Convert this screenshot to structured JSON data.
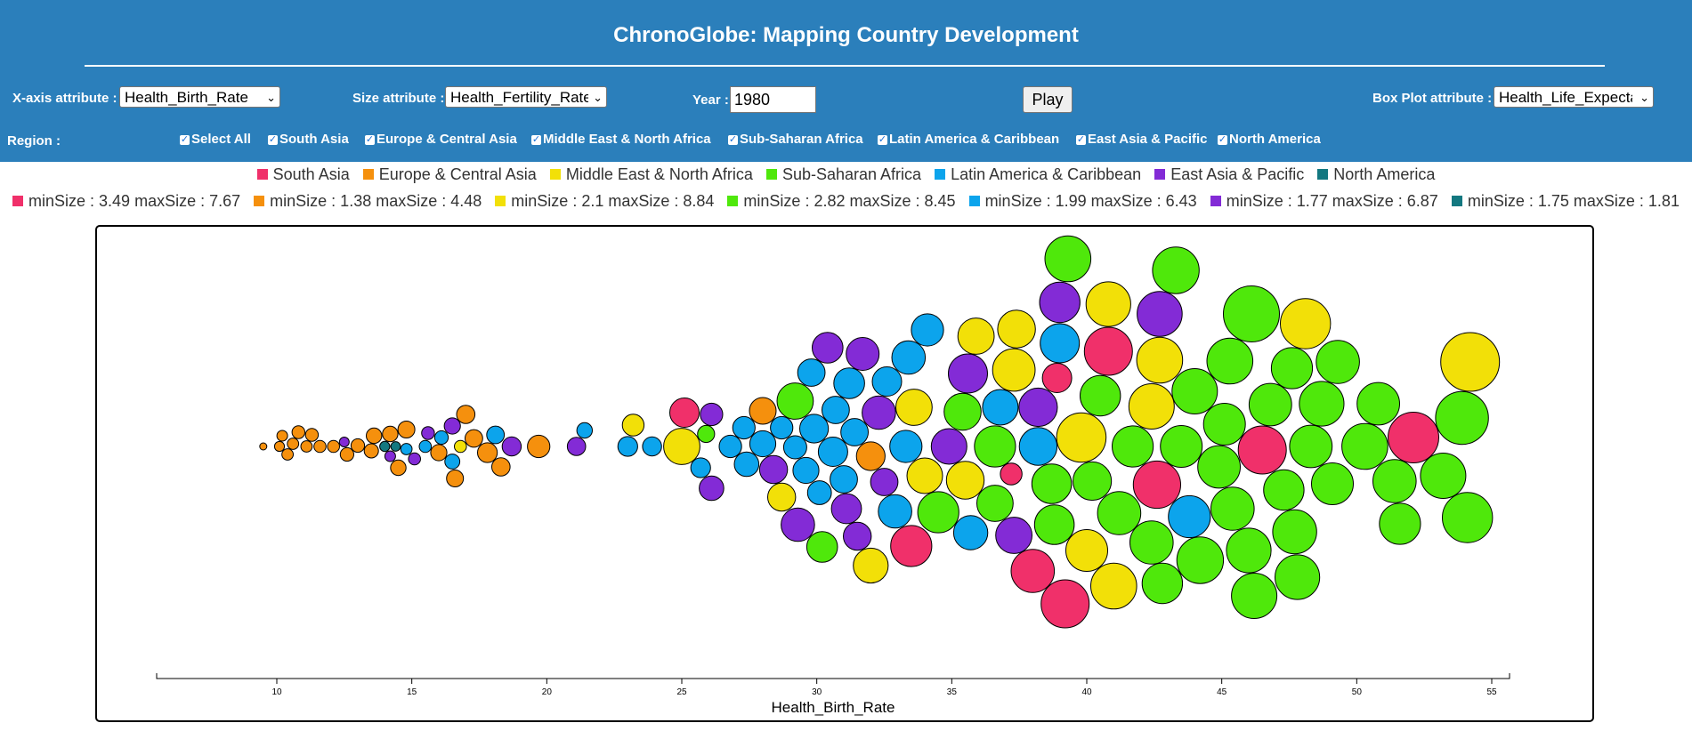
{
  "app_title": "ChronoGlobe: Mapping Country Development",
  "controls": {
    "xaxis_label": "X-axis attribute :",
    "xaxis_value": "Health_Birth_Rate",
    "size_label": "Size attribute :",
    "size_value": "Health_Fertility_Rate",
    "year_label": "Year :",
    "year_value": "1980",
    "play_label": "Play",
    "boxplot_label": "Box Plot attribute :",
    "boxplot_value": "Health_Life_Expectancy",
    "region_label": "Region :",
    "regions": [
      {
        "label": "Select All",
        "checked": true
      },
      {
        "label": "South Asia",
        "checked": true
      },
      {
        "label": "Europe & Central Asia",
        "checked": true
      },
      {
        "label": "Middle East & North Africa",
        "checked": true
      },
      {
        "label": "Sub-Saharan Africa",
        "checked": true
      },
      {
        "label": "Latin America & Caribbean",
        "checked": true
      },
      {
        "label": "East Asia & Pacific",
        "checked": true
      },
      {
        "label": "North America",
        "checked": true
      }
    ]
  },
  "colors": {
    "header_bg": "#2b7fbb",
    "south_asia": "#f0306a",
    "europe_central_asia": "#f5900d",
    "middle_east_north_africa": "#f2e008",
    "sub_saharan_africa": "#4fe80b",
    "latin_america_caribbean": "#0ca4ec",
    "east_asia_pacific": "#832bd6",
    "north_america": "#137880"
  },
  "size_legend": [
    {
      "text": "minSize : 3.49 maxSize : 7.67"
    },
    {
      "text": "minSize : 1.38 maxSize : 4.48"
    },
    {
      "text": "minSize : 2.1 maxSize : 8.84"
    },
    {
      "text": "minSize : 2.82 maxSize : 8.45"
    },
    {
      "text": "minSize : 1.99 maxSize : 6.43"
    },
    {
      "text": "minSize : 1.77 maxSize : 6.87"
    },
    {
      "text": "minSize : 1.75 maxSize : 1.81"
    }
  ],
  "chart_data": {
    "type": "scatter",
    "subtype": "beeswarm",
    "xlabel": "Health_Birth_Rate",
    "xlim": [
      5,
      55
    ],
    "xticks": [
      10,
      15,
      20,
      25,
      30,
      35,
      40,
      45,
      50,
      55
    ],
    "series": [
      {
        "name": "South Asia",
        "color": "#f0306a",
        "points": [
          [
            25.1,
            4.6
          ],
          [
            33.5,
            6.3
          ],
          [
            38.0,
            6.6
          ],
          [
            39.2,
            7.3
          ],
          [
            40.8,
            7.3
          ],
          [
            42.6,
            7.2
          ],
          [
            46.5,
            7.3
          ],
          [
            52.1,
            7.67
          ],
          [
            38.9,
            4.6
          ],
          [
            37.2,
            3.49
          ]
        ]
      },
      {
        "name": "Europe & Central Asia",
        "color": "#f5900d",
        "points": [
          [
            9.5,
            1.38
          ],
          [
            10.1,
            1.8
          ],
          [
            10.2,
            1.9
          ],
          [
            10.4,
            2.0
          ],
          [
            10.6,
            2.0
          ],
          [
            10.8,
            2.2
          ],
          [
            11.1,
            2.0
          ],
          [
            11.3,
            2.2
          ],
          [
            11.6,
            2.1
          ],
          [
            12.1,
            2.1
          ],
          [
            12.6,
            2.3
          ],
          [
            13.0,
            2.3
          ],
          [
            13.5,
            2.4
          ],
          [
            13.6,
            2.6
          ],
          [
            14.2,
            2.6
          ],
          [
            14.5,
            2.6
          ],
          [
            14.8,
            2.8
          ],
          [
            16.0,
            2.7
          ],
          [
            16.6,
            2.8
          ],
          [
            17.0,
            3.0
          ],
          [
            17.3,
            2.9
          ],
          [
            17.8,
            3.2
          ],
          [
            18.3,
            3.0
          ],
          [
            19.7,
            3.6
          ],
          [
            28.0,
            4.2
          ],
          [
            32.0,
            4.48
          ]
        ]
      },
      {
        "name": "Middle East & North Africa",
        "color": "#f2e008",
        "points": [
          [
            23.2,
            3.5
          ],
          [
            25.0,
            5.6
          ],
          [
            28.7,
            4.4
          ],
          [
            32.0,
            5.4
          ],
          [
            34.0,
            5.5
          ],
          [
            35.9,
            5.6
          ],
          [
            35.5,
            5.8
          ],
          [
            37.4,
            5.8
          ],
          [
            37.3,
            6.5
          ],
          [
            39.8,
            7.5
          ],
          [
            40.0,
            6.4
          ],
          [
            40.8,
            6.8
          ],
          [
            42.7,
            7.0
          ],
          [
            48.1,
            7.6
          ],
          [
            54.2,
            8.84
          ],
          [
            33.6,
            5.6
          ],
          [
            42.4,
            6.9
          ],
          [
            41.0,
            7.0
          ],
          [
            16.8,
            2.1
          ]
        ]
      },
      {
        "name": "Sub-Saharan Africa",
        "color": "#4fe80b",
        "points": [
          [
            25.9,
            2.82
          ],
          [
            29.2,
            5.6
          ],
          [
            30.2,
            4.8
          ],
          [
            34.5,
            6.3
          ],
          [
            35.4,
            5.7
          ],
          [
            36.6,
            6.3
          ],
          [
            38.8,
            6.1
          ],
          [
            40.5,
            6.2
          ],
          [
            41.7,
            6.3
          ],
          [
            42.8,
            6.2
          ],
          [
            43.5,
            6.4
          ],
          [
            44.9,
            6.5
          ],
          [
            45.3,
            7.0
          ],
          [
            45.1,
            6.4
          ],
          [
            46.0,
            6.8
          ],
          [
            46.8,
            6.5
          ],
          [
            47.3,
            6.2
          ],
          [
            47.7,
            6.7
          ],
          [
            48.3,
            6.5
          ],
          [
            48.7,
            6.8
          ],
          [
            49.1,
            6.4
          ],
          [
            49.3,
            6.6
          ],
          [
            50.3,
            7.0
          ],
          [
            50.8,
            6.5
          ],
          [
            51.4,
            6.6
          ],
          [
            51.6,
            6.3
          ],
          [
            53.2,
            6.9
          ],
          [
            54.1,
            7.6
          ],
          [
            53.9,
            8.0
          ],
          [
            41.2,
            6.6
          ],
          [
            44.0,
            6.9
          ],
          [
            46.2,
            6.9
          ],
          [
            40.2,
            5.9
          ],
          [
            38.7,
            6.1
          ],
          [
            43.3,
            7.1
          ],
          [
            47.6,
            6.3
          ],
          [
            39.3,
            7.0
          ],
          [
            44.2,
            7.1
          ],
          [
            46.1,
            8.45
          ],
          [
            47.8,
            6.8
          ],
          [
            42.4,
            6.6
          ],
          [
            45.4,
            6.6
          ],
          [
            36.6,
            5.6
          ]
        ]
      },
      {
        "name": "Latin America & Caribbean",
        "color": "#0ca4ec",
        "points": [
          [
            14.8,
            1.99
          ],
          [
            15.5,
            2.1
          ],
          [
            16.1,
            2.3
          ],
          [
            16.5,
            2.5
          ],
          [
            18.1,
            2.9
          ],
          [
            21.4,
            2.6
          ],
          [
            23.0,
            3.2
          ],
          [
            23.9,
            3.1
          ],
          [
            25.7,
            3.2
          ],
          [
            26.8,
            3.6
          ],
          [
            27.3,
            3.6
          ],
          [
            27.4,
            3.9
          ],
          [
            28.0,
            4.1
          ],
          [
            28.7,
            3.6
          ],
          [
            29.2,
            3.7
          ],
          [
            29.6,
            4.1
          ],
          [
            29.8,
            4.3
          ],
          [
            30.1,
            3.8
          ],
          [
            30.6,
            4.6
          ],
          [
            30.7,
            4.3
          ],
          [
            31.0,
            4.3
          ],
          [
            31.4,
            4.3
          ],
          [
            32.6,
            4.6
          ],
          [
            33.3,
            5.0
          ],
          [
            33.4,
            5.2
          ],
          [
            34.1,
            5.0
          ],
          [
            35.7,
            5.3
          ],
          [
            36.8,
            5.5
          ],
          [
            38.2,
            5.8
          ],
          [
            39.0,
            6.0
          ],
          [
            43.8,
            6.43
          ],
          [
            31.2,
            4.8
          ],
          [
            29.9,
            4.5
          ],
          [
            32.9,
            5.2
          ]
        ]
      },
      {
        "name": "East Asia & Pacific",
        "color": "#832bd6",
        "points": [
          [
            12.5,
            1.77
          ],
          [
            14.2,
            1.9
          ],
          [
            15.1,
            2.1
          ],
          [
            15.6,
            2.2
          ],
          [
            16.5,
            2.7
          ],
          [
            18.7,
            3.1
          ],
          [
            21.1,
            3.0
          ],
          [
            26.1,
            3.6
          ],
          [
            26.1,
            3.9
          ],
          [
            28.4,
            4.4
          ],
          [
            29.3,
            5.2
          ],
          [
            30.4,
            4.8
          ],
          [
            31.1,
            4.7
          ],
          [
            31.7,
            5.1
          ],
          [
            32.3,
            5.2
          ],
          [
            32.5,
            4.3
          ],
          [
            34.9,
            5.5
          ],
          [
            35.6,
            6.0
          ],
          [
            37.3,
            5.6
          ],
          [
            38.2,
            5.9
          ],
          [
            39.0,
            6.2
          ],
          [
            42.7,
            6.87
          ],
          [
            31.5,
            4.4
          ]
        ]
      },
      {
        "name": "North America",
        "color": "#137880",
        "points": [
          [
            14.0,
            1.81
          ],
          [
            14.4,
            1.75
          ]
        ]
      }
    ]
  }
}
